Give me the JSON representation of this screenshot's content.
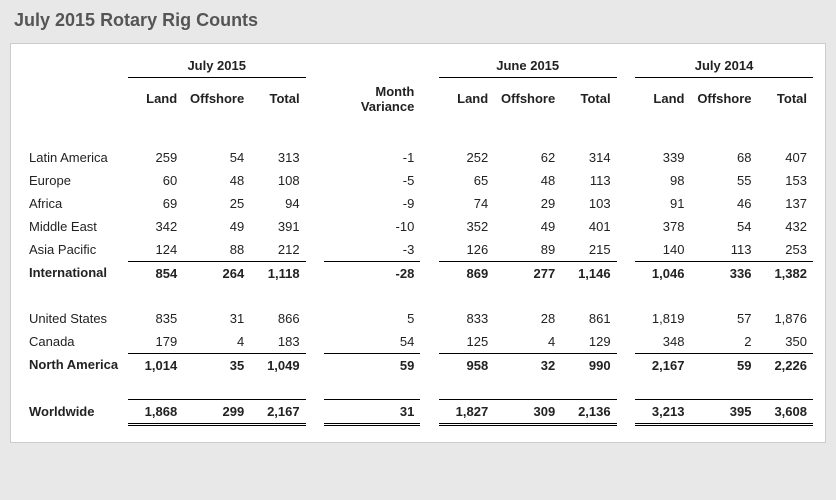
{
  "title": "July 2015 Rotary Rig Counts",
  "periods": [
    "July 2015",
    "June 2015",
    "July 2014"
  ],
  "columns": [
    "Land",
    "Offshore",
    "Total"
  ],
  "month_variance_label": "Month Variance",
  "groups": [
    {
      "rows": [
        {
          "label": "Latin America",
          "p1": [
            "259",
            "54",
            "313"
          ],
          "mv": "-1",
          "p2": [
            "252",
            "62",
            "314"
          ],
          "p3": [
            "339",
            "68",
            "407"
          ]
        },
        {
          "label": "Europe",
          "p1": [
            "60",
            "48",
            "108"
          ],
          "mv": "-5",
          "p2": [
            "65",
            "48",
            "113"
          ],
          "p3": [
            "98",
            "55",
            "153"
          ]
        },
        {
          "label": "Africa",
          "p1": [
            "69",
            "25",
            "94"
          ],
          "mv": "-9",
          "p2": [
            "74",
            "29",
            "103"
          ],
          "p3": [
            "91",
            "46",
            "137"
          ]
        },
        {
          "label": "Middle East",
          "p1": [
            "342",
            "49",
            "391"
          ],
          "mv": "-10",
          "p2": [
            "352",
            "49",
            "401"
          ],
          "p3": [
            "378",
            "54",
            "432"
          ]
        },
        {
          "label": "Asia Pacific",
          "p1": [
            "124",
            "88",
            "212"
          ],
          "mv": "-3",
          "p2": [
            "126",
            "89",
            "215"
          ],
          "p3": [
            "140",
            "113",
            "253"
          ]
        }
      ],
      "subtotal": {
        "label": "International",
        "p1": [
          "854",
          "264",
          "1,118"
        ],
        "mv": "-28",
        "p2": [
          "869",
          "277",
          "1,146"
        ],
        "p3": [
          "1,046",
          "336",
          "1,382"
        ]
      }
    },
    {
      "rows": [
        {
          "label": "United States",
          "p1": [
            "835",
            "31",
            "866"
          ],
          "mv": "5",
          "p2": [
            "833",
            "28",
            "861"
          ],
          "p3": [
            "1,819",
            "57",
            "1,876"
          ]
        },
        {
          "label": "Canada",
          "p1": [
            "179",
            "4",
            "183"
          ],
          "mv": "54",
          "p2": [
            "125",
            "4",
            "129"
          ],
          "p3": [
            "348",
            "2",
            "350"
          ]
        }
      ],
      "subtotal": {
        "label": "North America",
        "p1": [
          "1,014",
          "35",
          "1,049"
        ],
        "mv": "59",
        "p2": [
          "958",
          "32",
          "990"
        ],
        "p3": [
          "2,167",
          "59",
          "2,226"
        ]
      }
    }
  ],
  "worldwide": {
    "label": "Worldwide",
    "p1": [
      "1,868",
      "299",
      "2,167"
    ],
    "mv": "31",
    "p2": [
      "1,827",
      "309",
      "2,136"
    ],
    "p3": [
      "3,213",
      "395",
      "3,608"
    ]
  }
}
